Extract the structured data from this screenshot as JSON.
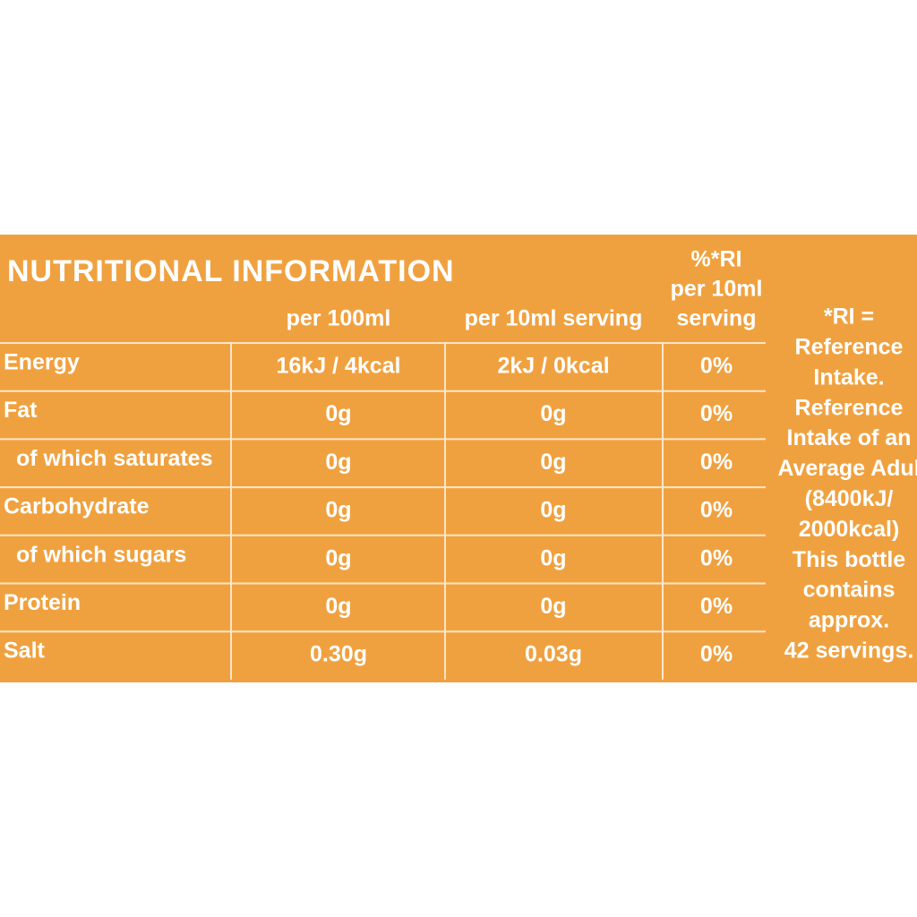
{
  "title": "NUTRITIONAL INFORMATION",
  "table": {
    "headers": [
      [
        "per 100ml"
      ],
      [
        "per 10ml serving"
      ],
      [
        "%*RI",
        "per 10ml",
        "serving"
      ]
    ],
    "rows": [
      [
        "Energy",
        "16kJ / 4kcal",
        "2kJ / 0kcal",
        "0%"
      ],
      [
        "Fat",
        "0g",
        "0g",
        "0%"
      ],
      [
        "of which saturates",
        "0g",
        "0g",
        "0%"
      ],
      [
        "Carbohydrate",
        "0g",
        "0g",
        "0%"
      ],
      [
        "of which sugars",
        "0g",
        "0g",
        "0%"
      ],
      [
        "Protein",
        "0g",
        "0g",
        "0%"
      ],
      [
        "Salt",
        "0.30g",
        "0.03g",
        "0%"
      ]
    ]
  },
  "note": [
    "*RI =",
    "Reference",
    "Intake.",
    "Reference",
    "Intake of an",
    "Average Adul",
    "(8400kJ/",
    "2000kcal)",
    "This bottle",
    "contains",
    "approx.",
    "42 servings."
  ]
}
